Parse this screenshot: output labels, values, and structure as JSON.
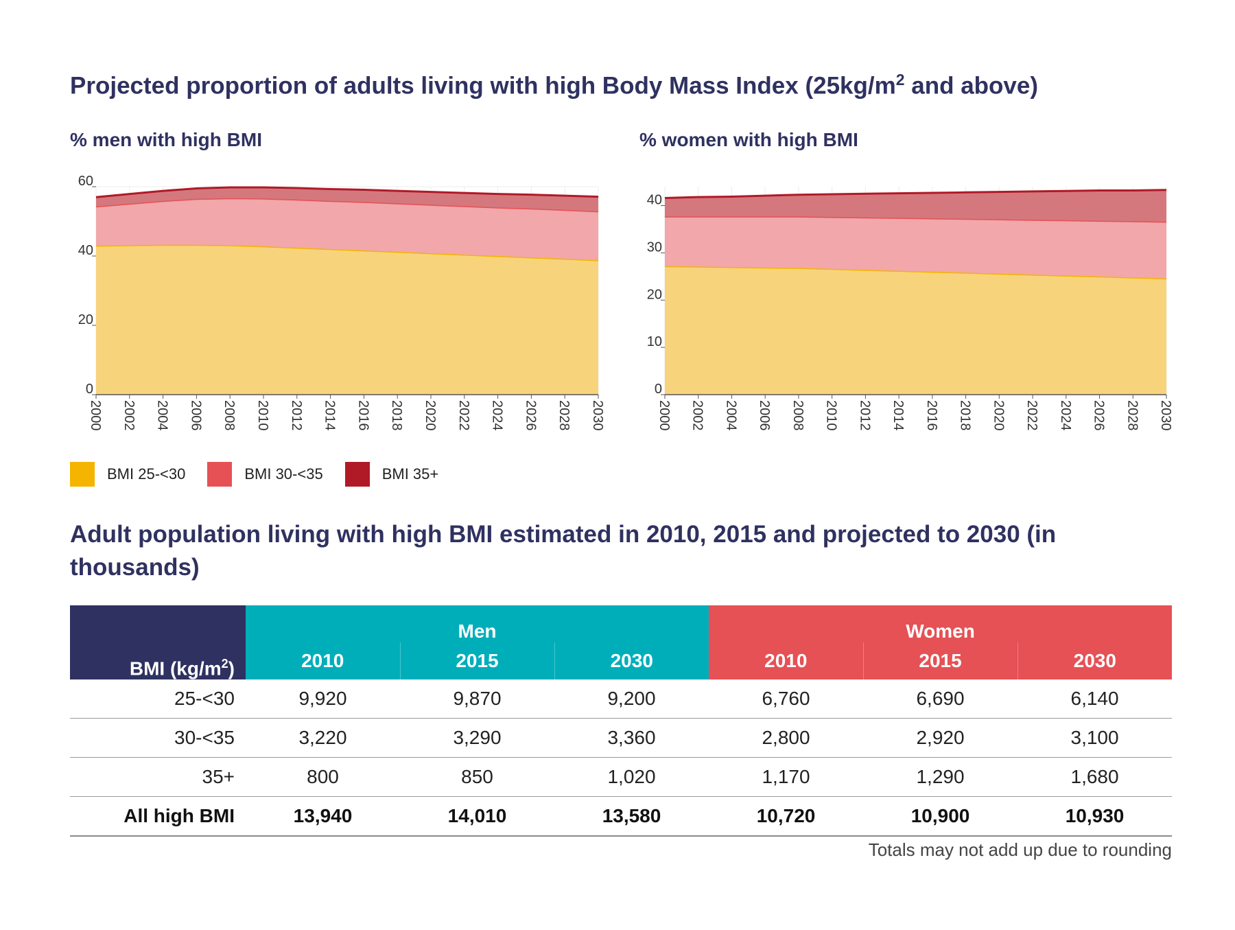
{
  "title": "Projected proportion of adults living with high Body Mass Index (25kg/m",
  "title_sup": "2",
  "title_tail": " and above)",
  "legend": [
    {
      "label": "BMI 25-<30",
      "color": "#f4b400"
    },
    {
      "label": "BMI 30-<35",
      "color": "#e55155"
    },
    {
      "label": "BMI 35+",
      "color": "#b01a26"
    }
  ],
  "chart_data": [
    {
      "type": "area",
      "stacked": true,
      "title": "% men with high BMI",
      "xlabel": "",
      "ylabel": "",
      "x": [
        2000,
        2002,
        2004,
        2006,
        2008,
        2010,
        2012,
        2014,
        2016,
        2018,
        2020,
        2022,
        2024,
        2026,
        2028,
        2030
      ],
      "xticks": [
        "2000",
        "2002",
        "2004",
        "2006",
        "2008",
        "2010",
        "2012",
        "2014",
        "2016",
        "2018",
        "2020",
        "2022",
        "2024",
        "2026",
        "2028",
        "2030"
      ],
      "yticks": [
        "0",
        "20",
        "40",
        "60"
      ],
      "ylim": [
        0,
        60
      ],
      "series": [
        {
          "name": "BMI 25-<30",
          "values": [
            43.0,
            43.1,
            43.2,
            43.2,
            43.1,
            42.8,
            42.4,
            42.0,
            41.6,
            41.2,
            40.8,
            40.4,
            40.0,
            39.6,
            39.2,
            38.8
          ]
        },
        {
          "name": "BMI 30-<35",
          "values": [
            11.3,
            12.0,
            12.7,
            13.3,
            13.6,
            13.8,
            13.9,
            13.9,
            14.0,
            14.0,
            14.0,
            14.0,
            14.0,
            14.1,
            14.1,
            14.1
          ]
        },
        {
          "name": "BMI 35+",
          "values": [
            2.7,
            2.8,
            2.9,
            3.0,
            3.1,
            3.2,
            3.3,
            3.4,
            3.5,
            3.6,
            3.7,
            3.8,
            3.9,
            4.0,
            4.1,
            4.2
          ]
        }
      ]
    },
    {
      "type": "area",
      "stacked": true,
      "title": "% women with high BMI",
      "xlabel": "",
      "ylabel": "",
      "x": [
        2000,
        2002,
        2004,
        2006,
        2008,
        2010,
        2012,
        2014,
        2016,
        2018,
        2020,
        2022,
        2024,
        2026,
        2028,
        2030
      ],
      "xticks": [
        "2000",
        "2002",
        "2004",
        "2006",
        "2008",
        "2010",
        "2012",
        "2014",
        "2016",
        "2018",
        "2020",
        "2022",
        "2024",
        "2026",
        "2028",
        "2030"
      ],
      "yticks": [
        "0",
        "10",
        "20",
        "30",
        "40"
      ],
      "ylim": [
        0,
        44
      ],
      "series": [
        {
          "name": "BMI 25-<30",
          "values": [
            27.2,
            27.1,
            27.0,
            26.9,
            26.8,
            26.6,
            26.4,
            26.2,
            26.0,
            25.8,
            25.6,
            25.4,
            25.2,
            25.0,
            24.8,
            24.6
          ]
        },
        {
          "name": "BMI 30-<35",
          "values": [
            10.5,
            10.6,
            10.7,
            10.8,
            10.9,
            11.0,
            11.1,
            11.2,
            11.3,
            11.4,
            11.5,
            11.6,
            11.7,
            11.8,
            11.9,
            12.0
          ]
        },
        {
          "name": "BMI 35+",
          "values": [
            3.9,
            4.1,
            4.2,
            4.4,
            4.6,
            4.8,
            5.0,
            5.2,
            5.4,
            5.6,
            5.8,
            6.0,
            6.2,
            6.4,
            6.5,
            6.7
          ]
        }
      ]
    }
  ],
  "table_title": "Adult population living with high BMI estimated in 2010, 2015 and projected to 2030 (in thousands)",
  "table": {
    "corner_label": "BMI (kg/m",
    "corner_sup": "2",
    "corner_close": ")",
    "men_label": "Men",
    "women_label": "Women",
    "years": [
      "2010",
      "2015",
      "2030",
      "2010",
      "2015",
      "2030"
    ],
    "rows": [
      {
        "label": "25-<30",
        "values": [
          "9,920",
          "9,870",
          "9,200",
          "6,760",
          "6,690",
          "6,140"
        ]
      },
      {
        "label": "30-<35",
        "values": [
          "3,220",
          "3,290",
          "3,360",
          "2,800",
          "2,920",
          "3,100"
        ]
      },
      {
        "label": "35+",
        "values": [
          "800",
          "850",
          "1,020",
          "1,170",
          "1,290",
          "1,680"
        ]
      }
    ],
    "total": {
      "label": "All high BMI",
      "values": [
        "13,940",
        "14,010",
        "13,580",
        "10,720",
        "10,900",
        "10,930"
      ]
    }
  },
  "note": "Totals may not add up due to rounding"
}
